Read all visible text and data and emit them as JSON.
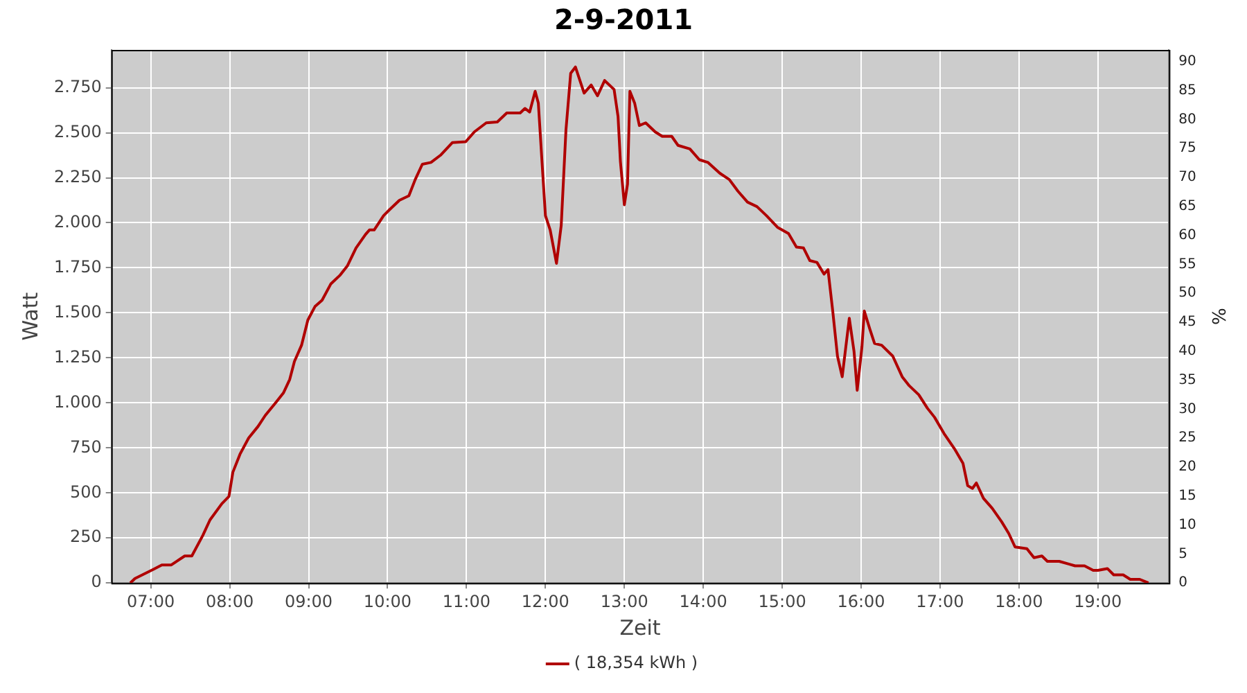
{
  "chart_data": {
    "type": "line",
    "title": "2-9-2011",
    "xlabel": "Zeit",
    "ylabel": "Watt",
    "y2label": "%",
    "xlim": [
      6.5,
      19.9
    ],
    "xticks": [
      {
        "value": 7,
        "label": "07:00"
      },
      {
        "value": 8,
        "label": "08:00"
      },
      {
        "value": 9,
        "label": "09:00"
      },
      {
        "value": 10,
        "label": "10:00"
      },
      {
        "value": 11,
        "label": "11:00"
      },
      {
        "value": 12,
        "label": "12:00"
      },
      {
        "value": 13,
        "label": "13:00"
      },
      {
        "value": 14,
        "label": "14:00"
      },
      {
        "value": 15,
        "label": "15:00"
      },
      {
        "value": 16,
        "label": "16:00"
      },
      {
        "value": 17,
        "label": "17:00"
      },
      {
        "value": 18,
        "label": "18:00"
      },
      {
        "value": 19,
        "label": "19:00"
      }
    ],
    "ylim": [
      0,
      2960
    ],
    "yticks": [
      0,
      250,
      500,
      750,
      {
        "value": 1000,
        "label": "1.000"
      },
      {
        "value": 1250,
        "label": "1.250"
      },
      {
        "value": 1500,
        "label": "1.500"
      },
      {
        "value": 1750,
        "label": "1.750"
      },
      {
        "value": 2000,
        "label": "2.000"
      },
      {
        "value": 2250,
        "label": "2.250"
      },
      {
        "value": 2500,
        "label": "2.500"
      },
      {
        "value": 2750,
        "label": "2.750"
      }
    ],
    "y2lim": [
      0,
      92
    ],
    "y2ticks": [
      0,
      5,
      10,
      15,
      20,
      25,
      30,
      35,
      40,
      45,
      50,
      55,
      60,
      65,
      70,
      75,
      80,
      85,
      90
    ],
    "grid": true,
    "legend": "bottom",
    "marker": "none",
    "line_style": "solid",
    "series": [
      {
        "name": "( 18,354 kWh )",
        "color": "#b00000",
        "x": [
          6.74,
          6.8,
          7.03,
          7.14,
          7.26,
          7.43,
          7.52,
          7.66,
          7.75,
          7.9,
          7.99,
          8.04,
          8.13,
          8.24,
          8.36,
          8.45,
          8.59,
          8.68,
          8.76,
          8.82,
          8.91,
          8.99,
          9.08,
          9.17,
          9.28,
          9.4,
          9.49,
          9.6,
          9.72,
          9.77,
          9.83,
          9.95,
          10.03,
          10.15,
          10.27,
          10.35,
          10.44,
          10.55,
          10.67,
          10.82,
          10.99,
          11.1,
          11.25,
          11.39,
          11.51,
          11.68,
          11.74,
          11.8,
          11.87,
          11.91,
          11.96,
          12.0,
          12.06,
          12.14,
          12.2,
          12.26,
          12.32,
          12.38,
          12.49,
          12.58,
          12.66,
          12.75,
          12.87,
          12.92,
          12.95,
          13.0,
          13.04,
          13.07,
          13.13,
          13.19,
          13.27,
          13.39,
          13.48,
          13.6,
          13.68,
          13.83,
          13.95,
          14.06,
          14.21,
          14.33,
          14.44,
          14.56,
          14.68,
          14.8,
          14.94,
          15.08,
          15.18,
          15.27,
          15.35,
          15.44,
          15.53,
          15.58,
          15.64,
          15.7,
          15.76,
          15.85,
          15.91,
          15.95,
          16.01,
          16.04,
          16.11,
          16.17,
          16.26,
          16.4,
          16.52,
          16.61,
          16.73,
          16.84,
          16.93,
          17.05,
          17.19,
          17.29,
          17.35,
          17.41,
          17.46,
          17.55,
          17.66,
          17.78,
          17.87,
          17.95,
          18.1,
          18.19,
          18.29,
          18.36,
          18.51,
          18.63,
          18.71,
          18.83,
          18.94,
          19.0,
          19.12,
          19.2,
          19.32,
          19.41,
          19.53,
          19.64
        ],
        "values": [
          0,
          25,
          75,
          100,
          100,
          150,
          150,
          265,
          350,
          440,
          480,
          615,
          715,
          805,
          870,
          930,
          1005,
          1055,
          1130,
          1230,
          1320,
          1460,
          1535,
          1570,
          1660,
          1710,
          1760,
          1860,
          1935,
          1960,
          1960,
          2040,
          2075,
          2125,
          2150,
          2240,
          2325,
          2335,
          2375,
          2445,
          2450,
          2505,
          2555,
          2560,
          2610,
          2610,
          2635,
          2615,
          2730,
          2665,
          2315,
          2040,
          1960,
          1775,
          1985,
          2515,
          2830,
          2865,
          2720,
          2765,
          2705,
          2790,
          2740,
          2590,
          2340,
          2100,
          2215,
          2730,
          2665,
          2540,
          2555,
          2505,
          2480,
          2480,
          2430,
          2410,
          2350,
          2335,
          2275,
          2240,
          2175,
          2115,
          2090,
          2040,
          1975,
          1940,
          1865,
          1860,
          1790,
          1780,
          1715,
          1740,
          1510,
          1260,
          1145,
          1470,
          1285,
          1070,
          1310,
          1510,
          1410,
          1330,
          1320,
          1260,
          1145,
          1095,
          1045,
          970,
          920,
          830,
          740,
          665,
          540,
          525,
          555,
          470,
          415,
          340,
          275,
          200,
          190,
          140,
          150,
          120,
          120,
          105,
          95,
          95,
          70,
          70,
          80,
          45,
          45,
          20,
          20,
          0
        ]
      }
    ]
  }
}
